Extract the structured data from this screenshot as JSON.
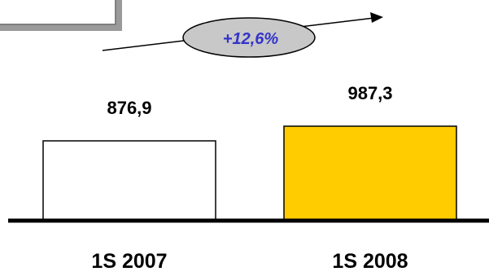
{
  "chart_data": {
    "type": "bar",
    "categories": [
      "1S 2007",
      "1S 2008"
    ],
    "values": [
      876.9,
      987.3
    ],
    "value_labels": [
      "876,9",
      "987,3"
    ],
    "annotation": "+12,6%",
    "ylim": [
      0,
      1000
    ],
    "grid": false,
    "legend": "none"
  },
  "colors": {
    "bar_1": "#ffffff",
    "bar_2": "#ffcc00",
    "bar_outline": "#000000",
    "baseline": "#000000",
    "growth_text": "#3333cc",
    "growth_ellipse": "#c8c8c8",
    "frame_border": "#808080"
  }
}
